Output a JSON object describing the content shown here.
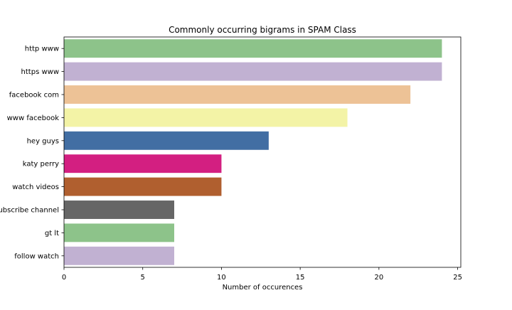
{
  "chart_data": {
    "type": "bar",
    "orientation": "horizontal",
    "title": "Commonly occurring bigrams in SPAM Class",
    "xlabel": "Number of occurences",
    "ylabel": "",
    "xlim": [
      0,
      25.2
    ],
    "xticks": [
      0,
      5,
      10,
      15,
      20,
      25
    ],
    "grid": false,
    "categories": [
      "http www",
      "https www",
      "facebook com",
      "www facebook",
      "hey guys",
      "katy perry",
      "watch videos",
      "subscribe channel",
      "gt lt",
      "follow watch"
    ],
    "values": [
      24,
      24,
      22,
      18,
      13,
      10,
      10,
      7,
      7,
      7
    ],
    "colors": [
      "#8dc38a",
      "#c1b1d2",
      "#edc296",
      "#f3f3a6",
      "#426ea3",
      "#d31f81",
      "#b05f2f",
      "#666666",
      "#8dc38a",
      "#c1b1d2"
    ]
  }
}
